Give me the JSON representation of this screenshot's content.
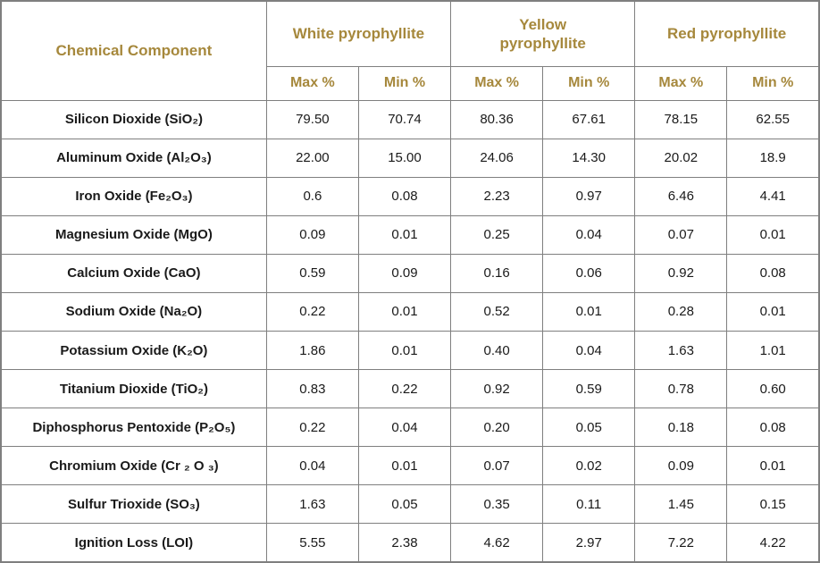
{
  "chart_data": {
    "type": "table",
    "corner_header": "Chemical Component",
    "groups": [
      {
        "label": "White pyrophyllite"
      },
      {
        "label": "Yellow\npyrophyllite"
      },
      {
        "label": "Red pyrophyllite"
      }
    ],
    "sub_headers": [
      "Max %",
      "Min %"
    ],
    "rows": [
      {
        "label": "Silicon Dioxide (SiO₂)",
        "values": [
          "79.50",
          "70.74",
          "80.36",
          "67.61",
          "78.15",
          "62.55"
        ]
      },
      {
        "label": "Aluminum Oxide (Al₂O₃)",
        "values": [
          "22.00",
          "15.00",
          "24.06",
          "14.30",
          "20.02",
          "18.9"
        ]
      },
      {
        "label": "Iron Oxide (Fe₂O₃)",
        "values": [
          "0.6",
          "0.08",
          "2.23",
          "0.97",
          "6.46",
          "4.41"
        ]
      },
      {
        "label": "Magnesium Oxide (MgO)",
        "values": [
          "0.09",
          "0.01",
          "0.25",
          "0.04",
          "0.07",
          "0.01"
        ]
      },
      {
        "label": "Calcium Oxide (CaO)",
        "values": [
          "0.59",
          "0.09",
          "0.16",
          "0.06",
          "0.92",
          "0.08"
        ]
      },
      {
        "label": "Sodium Oxide (Na₂O)",
        "values": [
          "0.22",
          "0.01",
          "0.52",
          "0.01",
          "0.28",
          "0.01"
        ]
      },
      {
        "label": "Potassium Oxide (K₂O)",
        "values": [
          "1.86",
          "0.01",
          "0.40",
          "0.04",
          "1.63",
          "1.01"
        ]
      },
      {
        "label": "Titanium Dioxide (TiO₂)",
        "values": [
          "0.83",
          "0.22",
          "0.92",
          "0.59",
          "0.78",
          "0.60"
        ]
      },
      {
        "label": "Diphosphorus Pentoxide (P₂O₅)",
        "values": [
          "0.22",
          "0.04",
          "0.20",
          "0.05",
          "0.18",
          "0.08"
        ]
      },
      {
        "label": "Chromium Oxide (Cr ₂ O ₃)",
        "values": [
          "0.04",
          "0.01",
          "0.07",
          "0.02",
          "0.09",
          "0.01"
        ]
      },
      {
        "label": "Sulfur Trioxide (SO₃)",
        "values": [
          "1.63",
          "0.05",
          "0.35",
          "0.11",
          "1.45",
          "0.15"
        ]
      },
      {
        "label": "Ignition Loss (LOI)",
        "values": [
          "5.55",
          "2.38",
          "4.62",
          "2.97",
          "7.22",
          "4.22"
        ]
      }
    ]
  },
  "colors": {
    "header_text": "#A6883C",
    "body_text": "#1A1A1A",
    "border": "#7F7F7F",
    "background": "#FFFFFF"
  }
}
